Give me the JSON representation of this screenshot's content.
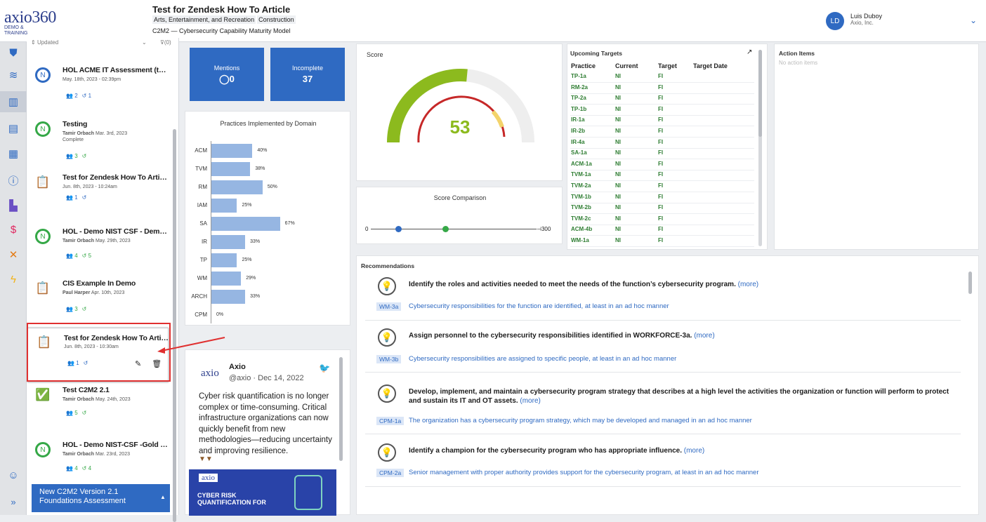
{
  "header": {
    "logo_main": "axio360",
    "logo_sub": "DEMO & TRAINING",
    "title": "Test for Zendesk How To Article",
    "tags": [
      "Arts, Entertainment, and Recreation",
      "Construction"
    ],
    "model": "C2M2 — Cybersecurity Capability Maturity Model",
    "user_initials": "LD",
    "user_name": "Luis Duboy",
    "user_org": "Axio, Inc."
  },
  "filter": {
    "label": "Updated",
    "filter_count": "(0)"
  },
  "assessments": [
    {
      "title": "HOL ACME IT Assessment (test)",
      "author": "",
      "date": "May. 18th, 2023 - 02:39pm",
      "status": "",
      "users": "2",
      "cycles": "1"
    },
    {
      "title": "Testing",
      "author": "Tamir Orbach",
      "date": "Mar. 3rd, 2023",
      "status": "Complete",
      "users": "3",
      "cycles": ""
    },
    {
      "title": "Test for Zendesk How To Article",
      "author": "",
      "date": "Jun. 8th, 2023 - 10:24am",
      "status": "",
      "users": "1",
      "cycles": ""
    },
    {
      "title": "HOL - Demo NIST CSF - Demo ...",
      "author": "Tamir Orbach",
      "date": "May. 29th, 2023",
      "status": "",
      "users": "4",
      "cycles": "5"
    },
    {
      "title": "CIS Example In Demo",
      "author": "Paul Harper",
      "date": "Apr. 10th, 2023",
      "status": "",
      "users": "3",
      "cycles": ""
    },
    {
      "title": "Test for Zendesk How To Article",
      "author": "",
      "date": "Jun. 8th, 2023 - 10:30am",
      "status": "",
      "users": "1",
      "cycles": ""
    },
    {
      "title": "Test C2M2 2.1",
      "author": "Tamir Orbach",
      "date": "May. 24th, 2023",
      "status": "",
      "users": "5",
      "cycles": ""
    },
    {
      "title": "HOL - Demo NIST-CSF -Gold St...",
      "author": "Tamir Orbach",
      "date": "Mar. 23rd, 2023",
      "status": "",
      "users": "4",
      "cycles": "4"
    }
  ],
  "new_assessment": {
    "line1": "New C2M2 Version 2.1",
    "line2": "Foundations Assessment"
  },
  "mentions": {
    "label": "Mentions",
    "value": "0"
  },
  "incomplete": {
    "label": "Incomplete",
    "value": "37"
  },
  "practices_chart": {
    "title": "Practices Implemented by Domain",
    "chart_data": {
      "type": "bar",
      "orientation": "horizontal",
      "categories": [
        "ACM",
        "TVM",
        "RM",
        "IAM",
        "SA",
        "IR",
        "TP",
        "WM",
        "ARCH",
        "CPM"
      ],
      "values": [
        40,
        38,
        50,
        25,
        67,
        33,
        25,
        29,
        33,
        0
      ],
      "value_suffix": "%"
    }
  },
  "score": {
    "title": "Score",
    "value": "53",
    "gauge_fraction": 0.53
  },
  "score_comparison": {
    "title": "Score Comparison",
    "min": "0",
    "max": "300",
    "markers": [
      {
        "value": 50,
        "color": "#2f6ac2"
      },
      {
        "value": 135,
        "color": "#35a847"
      }
    ]
  },
  "upcoming_targets": {
    "title": "Upcoming Targets",
    "columns": [
      "Practice",
      "Current",
      "Target",
      "Target Date"
    ],
    "rows": [
      [
        "TP-1a",
        "NI",
        "FI"
      ],
      [
        "RM-2a",
        "NI",
        "FI"
      ],
      [
        "TP-2a",
        "NI",
        "FI"
      ],
      [
        "TP-1b",
        "NI",
        "FI"
      ],
      [
        "IR-1a",
        "NI",
        "FI"
      ],
      [
        "IR-2b",
        "NI",
        "FI"
      ],
      [
        "IR-4a",
        "NI",
        "FI"
      ],
      [
        "SA-1a",
        "NI",
        "FI"
      ],
      [
        "ACM-1a",
        "NI",
        "FI"
      ],
      [
        "TVM-1a",
        "NI",
        "FI"
      ],
      [
        "TVM-2a",
        "NI",
        "FI"
      ],
      [
        "TVM-1b",
        "NI",
        "FI"
      ],
      [
        "TVM-2b",
        "NI",
        "FI"
      ],
      [
        "TVM-2c",
        "NI",
        "FI"
      ],
      [
        "ACM-4b",
        "NI",
        "FI"
      ],
      [
        "WM-1a",
        "NI",
        "FI"
      ]
    ]
  },
  "action_items": {
    "title": "Action Items",
    "empty": "No action items"
  },
  "twitter": {
    "logo": "axio",
    "name": "Axio",
    "handle_date": "@axio · Dec 14, 2022",
    "text": "Cyber risk quantification is no longer complex or time-consuming. Critical infrastructure organizations can now quickly benefit from new methodologies—reducing uncertainty and improving resilience.",
    "banner_logo": "axio",
    "banner_text1": "CYBER RISK",
    "banner_text2": "QUANTIFICATION FOR"
  },
  "recommendations": {
    "title": "Recommendations",
    "more_label": "(more)",
    "items": [
      {
        "text": "Identify the roles and activities needed to meet the needs of the function’s cybersecurity program.",
        "code": "WM-3a",
        "desc": "Cybersecurity responsibilities for the function are identified, at least in an ad hoc manner"
      },
      {
        "text": "Assign personnel to the cybersecurity responsibilities identified in WORKFORCE-3a.",
        "code": "WM-3b",
        "desc": "Cybersecurity responsibilities are assigned to specific people, at least in an ad hoc manner"
      },
      {
        "text": "Develop, implement, and maintain a cybersecurity program strategy that describes at a high level the activities the organization or function will perform to protect and sustain its IT and OT assets.",
        "code": "CPM-1a",
        "desc": "The organization has a cybersecurity program strategy, which may be developed and managed in an ad hoc manner"
      },
      {
        "text": "Identify a champion for the cybersecurity program who has appropriate influence.",
        "code": "CPM-2a",
        "desc": "Senior management with proper authority provides support for the cybersecurity program, at least in an ad hoc manner"
      }
    ]
  },
  "colors": {
    "accent": "#2f6ac2",
    "green": "#35a847",
    "gauge_green": "#8cba1e",
    "gauge_red": "#c62828",
    "gauge_yellow": "#f3d36b",
    "bar": "#96b6e2",
    "annotation": "#e03030"
  }
}
